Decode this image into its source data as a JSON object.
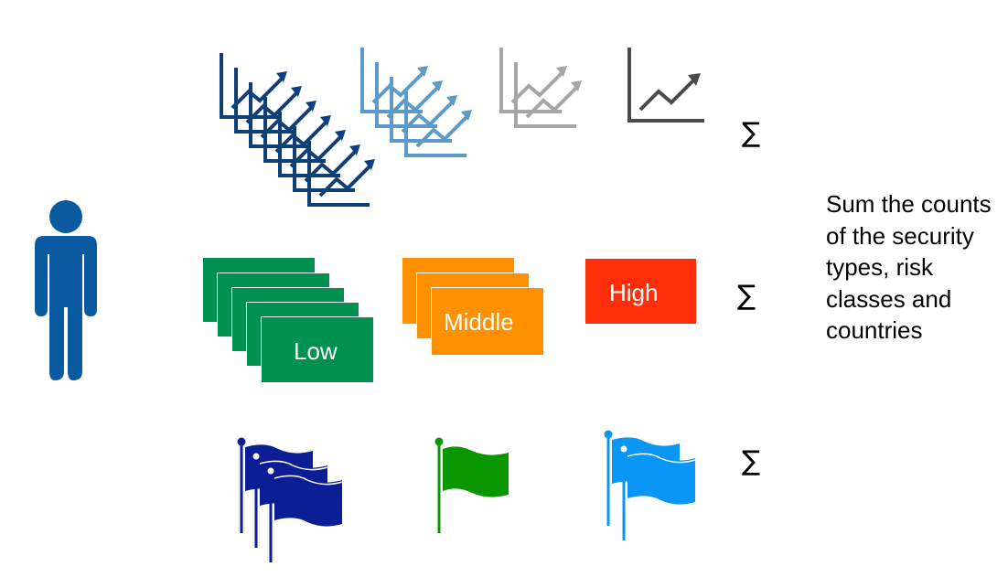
{
  "risk_classes": {
    "low_label": "Low",
    "middle_label": "Middle",
    "high_label": "High"
  },
  "sum_symbols": {
    "row1": "∑",
    "row2": "∑",
    "row3": "∑"
  },
  "description": "Sum the counts of the security types, risk classes and countries",
  "icons": {
    "person": "person-icon",
    "chart": "line-chart-icon",
    "flag": "flag-icon"
  },
  "colors": {
    "person": "#0a5aa0",
    "chart_dark_blue": "#0d3f78",
    "chart_light_blue": "#5c9bc7",
    "chart_gray": "#a6a6a6",
    "chart_dark_gray": "#4a4a4a",
    "low": "#009150",
    "middle": "#ff9000",
    "high": "#ff2d0a",
    "flag_navy": "#0c1e96",
    "flag_green": "#0a9600",
    "flag_light_blue": "#0a96f5"
  }
}
